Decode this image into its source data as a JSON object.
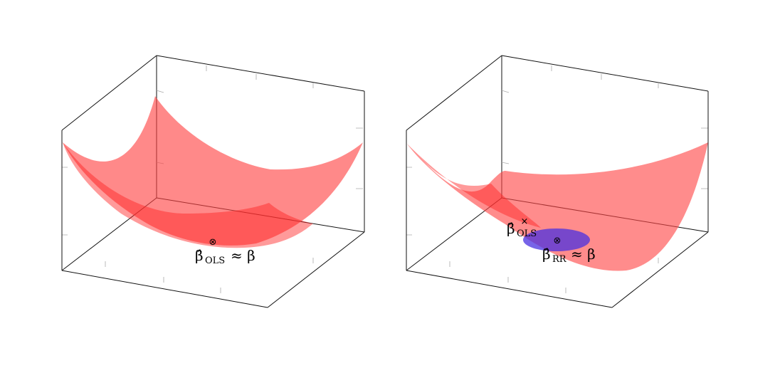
{
  "panels": [
    {
      "id": "ols",
      "labels": [
        {
          "id": "beta-ols-approx",
          "hat_symbol": "β̂",
          "sub": "OLS",
          "rest": "≈ β"
        }
      ],
      "surface_color": "#ff3b3b",
      "marker_symbol": "⊗"
    },
    {
      "id": "ridge",
      "labels": [
        {
          "id": "beta-ols",
          "hat_symbol": "β̂",
          "sub": "OLS",
          "rest": ""
        },
        {
          "id": "beta-rr-approx",
          "hat_symbol": "β̂",
          "sub": "RR",
          "rest": "≈ β"
        }
      ],
      "surface_color": "#ff3b3b",
      "constraint_color": "#5533dd",
      "marker_symbol": "⊗",
      "ols_marker_symbol": "×"
    }
  ]
}
